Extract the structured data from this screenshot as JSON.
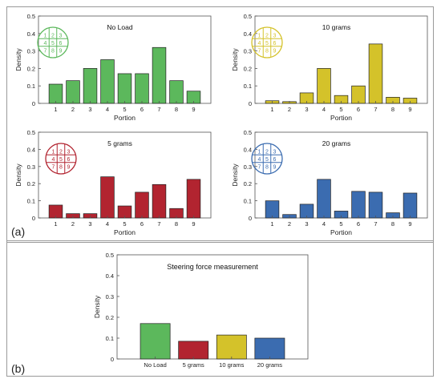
{
  "panel_labels": {
    "a": "(a)",
    "b": "(b)"
  },
  "colors": {
    "green": "#5cb85c",
    "yellow": "#d4c22a",
    "red": "#b22430",
    "blue": "#3b6cb0"
  },
  "chart_data": [
    {
      "type": "bar",
      "title": "No Load",
      "xlabel": "Portion",
      "ylabel": "Density",
      "categories": [
        "1",
        "2",
        "3",
        "4",
        "5",
        "6",
        "7",
        "8",
        "9"
      ],
      "values": [
        0.11,
        0.13,
        0.2,
        0.25,
        0.17,
        0.17,
        0.32,
        0.13,
        0.07
      ],
      "ylim": [
        0,
        0.5
      ],
      "yticks": [
        "0",
        "0.1",
        "0.2",
        "0.3",
        "0.4",
        "0.5"
      ],
      "color": "#5cb85c",
      "grid_labels": [
        "1",
        "2",
        "3",
        "4",
        "5",
        "6",
        "7",
        "8",
        "9"
      ]
    },
    {
      "type": "bar",
      "title": "10 grams",
      "xlabel": "Portion",
      "ylabel": "Density",
      "categories": [
        "1",
        "2",
        "3",
        "4",
        "5",
        "6",
        "7",
        "8",
        "9"
      ],
      "values": [
        0.015,
        0.01,
        0.06,
        0.2,
        0.045,
        0.1,
        0.34,
        0.035,
        0.03
      ],
      "ylim": [
        0,
        0.5
      ],
      "yticks": [
        "0",
        "0.1",
        "0.2",
        "0.3",
        "0.4",
        "0.5"
      ],
      "color": "#d4c22a",
      "grid_labels": [
        "1",
        "2",
        "3",
        "4",
        "5",
        "6",
        "7",
        "8",
        "9"
      ]
    },
    {
      "type": "bar",
      "title": "5 grams",
      "xlabel": "Portion",
      "ylabel": "Density",
      "categories": [
        "1",
        "2",
        "3",
        "4",
        "5",
        "6",
        "7",
        "8",
        "9"
      ],
      "values": [
        0.075,
        0.025,
        0.025,
        0.24,
        0.07,
        0.15,
        0.195,
        0.055,
        0.225
      ],
      "ylim": [
        0,
        0.5
      ],
      "yticks": [
        "0",
        "0.1",
        "0.2",
        "0.3",
        "0.4",
        "0.5"
      ],
      "color": "#b22430",
      "grid_labels": [
        "1",
        "2",
        "3",
        "4",
        "5",
        "6",
        "7",
        "8",
        "9"
      ]
    },
    {
      "type": "bar",
      "title": "20 grams",
      "xlabel": "Portion",
      "ylabel": "Density",
      "categories": [
        "1",
        "2",
        "3",
        "4",
        "5",
        "6",
        "7",
        "8",
        "9"
      ],
      "values": [
        0.1,
        0.02,
        0.08,
        0.225,
        0.04,
        0.155,
        0.15,
        0.03,
        0.145
      ],
      "ylim": [
        0,
        0.5
      ],
      "yticks": [
        "0",
        "0.1",
        "0.2",
        "0.3",
        "0.4",
        "0.5"
      ],
      "color": "#3b6cb0",
      "grid_labels": [
        "1",
        "2",
        "3",
        "4",
        "5",
        "6",
        "7",
        "8",
        "9"
      ]
    },
    {
      "type": "bar",
      "title": "Steering force measurement",
      "xlabel": "",
      "ylabel": "Density",
      "categories": [
        "No Load",
        "5 grams",
        "10 grams",
        "20 grams"
      ],
      "values": [
        0.17,
        0.085,
        0.115,
        0.1
      ],
      "colors": [
        "#5cb85c",
        "#b22430",
        "#d4c22a",
        "#3b6cb0"
      ],
      "ylim": [
        0,
        0.5
      ],
      "yticks": [
        "0",
        "0.1",
        "0.2",
        "0.3",
        "0.4",
        "0.5"
      ]
    }
  ]
}
